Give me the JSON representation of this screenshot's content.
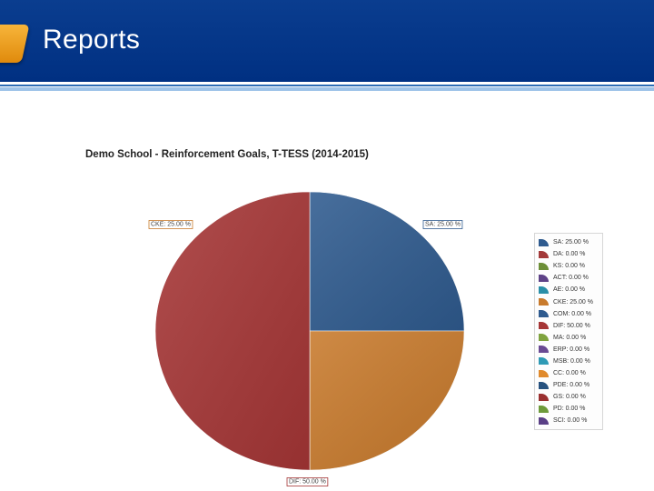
{
  "header": {
    "title": "Reports"
  },
  "chart_data": {
    "type": "pie",
    "title": "Demo School - Reinforcement Goals, T-TESS (2014-2015)",
    "slices": [
      {
        "name": "SA",
        "value": 25.0,
        "label": "SA: 25.00 %",
        "color": "#2f5b8f"
      },
      {
        "name": "DA",
        "value": 0.0,
        "label": "DA: 0.00 %",
        "color": "#a33a3a"
      },
      {
        "name": "KS",
        "value": 0.0,
        "label": "KS: 0.00 %",
        "color": "#6d8f38"
      },
      {
        "name": "ACT",
        "value": 0.0,
        "label": "ACT: 0.00 %",
        "color": "#5e4287"
      },
      {
        "name": "AE",
        "value": 0.0,
        "label": "AE: 0.00 %",
        "color": "#2a8fa8"
      },
      {
        "name": "CKE",
        "value": 25.0,
        "label": "CKE: 25.00 %",
        "color": "#c87a2c"
      },
      {
        "name": "COM",
        "value": 0.0,
        "label": "COM: 0.00 %",
        "color": "#2f5b8f"
      },
      {
        "name": "DIF",
        "value": 50.0,
        "label": "DIF: 50.00 %",
        "color": "#a63636"
      },
      {
        "name": "MA",
        "value": 0.0,
        "label": "MA: 0.00 %",
        "color": "#7fa33f"
      },
      {
        "name": "ERP",
        "value": 0.0,
        "label": "ERP: 0.00 %",
        "color": "#6a4a93"
      },
      {
        "name": "MSB",
        "value": 0.0,
        "label": "MSB: 0.00 %",
        "color": "#2f9ab5"
      },
      {
        "name": "CC",
        "value": 0.0,
        "label": "CC: 0.00 %",
        "color": "#e08a2c"
      },
      {
        "name": "PDE",
        "value": 0.0,
        "label": "PDE: 0.00 %",
        "color": "#27527f"
      },
      {
        "name": "GS",
        "value": 0.0,
        "label": "GS: 0.00 %",
        "color": "#9a3030"
      },
      {
        "name": "PD",
        "value": 0.0,
        "label": "PD: 0.00 %",
        "color": "#6d9a3a"
      },
      {
        "name": "SCI",
        "value": 0.0,
        "label": "SCI: 0.00 %",
        "color": "#5a3f86"
      }
    ],
    "slice_labels_shown": [
      "SA",
      "CKE",
      "DIF"
    ],
    "legend_position": "right"
  }
}
